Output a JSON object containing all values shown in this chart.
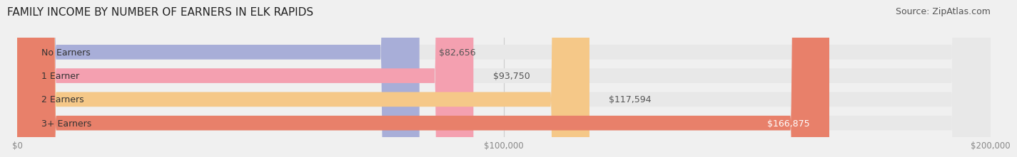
{
  "title": "FAMILY INCOME BY NUMBER OF EARNERS IN ELK RAPIDS",
  "source": "Source: ZipAtlas.com",
  "categories": [
    "No Earners",
    "1 Earner",
    "2 Earners",
    "3+ Earners"
  ],
  "values": [
    82656,
    93750,
    117594,
    166875
  ],
  "labels": [
    "$82,656",
    "$93,750",
    "$117,594",
    "$166,875"
  ],
  "bar_colors": [
    "#a8aed8",
    "#f4a0b0",
    "#f5c888",
    "#e8806a"
  ],
  "label_colors": [
    "#555555",
    "#555555",
    "#555555",
    "#ffffff"
  ],
  "xlim": [
    0,
    200000
  ],
  "xticks": [
    0,
    100000,
    200000
  ],
  "xticklabels": [
    "$0",
    "$100,000",
    "$200,000"
  ],
  "title_fontsize": 11,
  "source_fontsize": 9,
  "bar_label_fontsize": 9,
  "cat_label_fontsize": 9,
  "background_color": "#f0f0f0",
  "bar_background_color": "#e8e8e8",
  "bar_height": 0.62
}
